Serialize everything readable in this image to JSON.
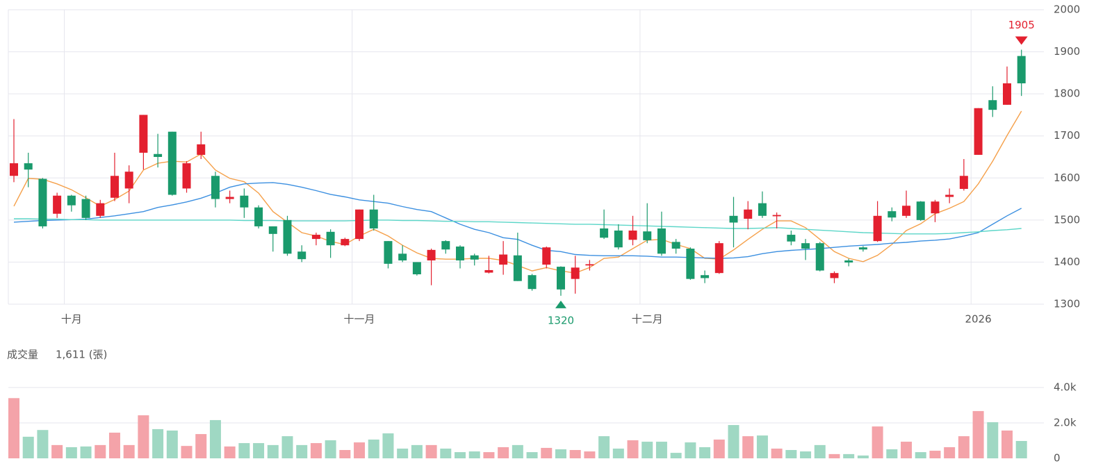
{
  "chart_data": [
    {
      "type": "candlestick",
      "categories": [
        null,
        null,
        null,
        null,
        "十月",
        null,
        null,
        null,
        null,
        null,
        null,
        null,
        null,
        null,
        null,
        null,
        null,
        null,
        null,
        null,
        null,
        null,
        null,
        null,
        "十一月",
        null,
        null,
        null,
        null,
        null,
        null,
        null,
        null,
        null,
        null,
        null,
        null,
        null,
        null,
        null,
        null,
        null,
        null,
        null,
        "十二月",
        null,
        null,
        null,
        null,
        null,
        null,
        null,
        null,
        null,
        null,
        null,
        null,
        null,
        null,
        null,
        null,
        null,
        null,
        null,
        null,
        null,
        null,
        "2026",
        null,
        null,
        null
      ],
      "open": [
        1605,
        1635,
        1598,
        1515,
        1558,
        1550,
        1510,
        1553,
        1575,
        1660,
        1657,
        1710,
        1575,
        1655,
        1605,
        1550,
        1558,
        1530,
        1485,
        1500,
        1425,
        1455,
        1472,
        1440,
        1455,
        1525,
        1450,
        1420,
        1400,
        1404,
        1450,
        1437,
        1416,
        1375,
        1394,
        1416,
        1369,
        1394,
        1389,
        1360,
        1392,
        1480,
        1475,
        1453,
        1473,
        1480,
        1448,
        1432,
        1369,
        1374,
        1510,
        1503,
        1540,
        1509,
        1465,
        1445,
        1445,
        1362,
        1404,
        1435,
        1450,
        1521,
        1510,
        1544,
        1516,
        1555,
        1574,
        1655,
        1785,
        1774,
        1890
      ],
      "high": [
        1740,
        1660,
        1600,
        1565,
        1560,
        1558,
        1548,
        1660,
        1630,
        1750,
        1705,
        1710,
        1640,
        1710,
        1615,
        1570,
        1575,
        1535,
        1485,
        1510,
        1440,
        1470,
        1478,
        1458,
        1525,
        1560,
        1450,
        1440,
        1400,
        1432,
        1452,
        1440,
        1420,
        1415,
        1450,
        1470,
        1372,
        1437,
        1390,
        1415,
        1405,
        1525,
        1490,
        1510,
        1540,
        1520,
        1455,
        1435,
        1380,
        1450,
        1555,
        1545,
        1568,
        1518,
        1475,
        1455,
        1448,
        1378,
        1408,
        1438,
        1545,
        1530,
        1570,
        1545,
        1548,
        1575,
        1645,
        1766,
        1818,
        1865,
        1905
      ],
      "low": [
        1590,
        1578,
        1480,
        1505,
        1520,
        1500,
        1505,
        1545,
        1540,
        1620,
        1625,
        1558,
        1565,
        1645,
        1530,
        1540,
        1505,
        1480,
        1425,
        1415,
        1400,
        1440,
        1410,
        1438,
        1450,
        1475,
        1385,
        1400,
        1368,
        1345,
        1420,
        1385,
        1392,
        1373,
        1370,
        1355,
        1332,
        1385,
        1320,
        1325,
        1380,
        1455,
        1430,
        1440,
        1445,
        1415,
        1420,
        1358,
        1350,
        1372,
        1435,
        1478,
        1505,
        1480,
        1440,
        1405,
        1378,
        1350,
        1390,
        1425,
        1448,
        1497,
        1505,
        1498,
        1495,
        1540,
        1570,
        1655,
        1745,
        1774,
        1795
      ],
      "close": [
        1635,
        1620,
        1485,
        1558,
        1535,
        1505,
        1540,
        1605,
        1615,
        1750,
        1650,
        1560,
        1635,
        1680,
        1550,
        1555,
        1530,
        1485,
        1467,
        1420,
        1407,
        1465,
        1440,
        1455,
        1525,
        1480,
        1396,
        1404,
        1371,
        1429,
        1430,
        1404,
        1406,
        1381,
        1418,
        1355,
        1336,
        1435,
        1335,
        1387,
        1395,
        1458,
        1435,
        1475,
        1452,
        1420,
        1432,
        1360,
        1362,
        1445,
        1494,
        1525,
        1510,
        1512,
        1449,
        1432,
        1380,
        1374,
        1399,
        1430,
        1510,
        1506,
        1534,
        1500,
        1544,
        1560,
        1605,
        1766,
        1762,
        1825,
        1825
      ],
      "up_color": "#e3202f",
      "down_color": "#1a9a6c",
      "series": [
        {
          "name": null,
          "color": "#f5a04a",
          "values": [
            1533,
            1599,
            1597,
            1586,
            1572,
            1553,
            1533,
            1549,
            1569,
            1619,
            1635,
            1640,
            1638,
            1657,
            1619,
            1599,
            1591,
            1564,
            1520,
            1495,
            1470,
            1462,
            1449,
            1442,
            1462,
            1478,
            1462,
            1440,
            1422,
            1409,
            1407,
            1407,
            1409,
            1409,
            1404,
            1392,
            1379,
            1387,
            1379,
            1374,
            1387,
            1409,
            1412,
            1432,
            1452,
            1454,
            1442,
            1432,
            1409,
            1407,
            1429,
            1454,
            1478,
            1498,
            1498,
            1482,
            1454,
            1425,
            1409,
            1401,
            1416,
            1442,
            1475,
            1491,
            1515,
            1528,
            1544,
            1586,
            1640,
            1701,
            1759
          ]
        },
        {
          "name": null,
          "color": "#3b8fe0",
          "values": [
            1495,
            1497,
            1499,
            1500,
            1501,
            1502,
            1506,
            1510,
            1515,
            1520,
            1530,
            1536,
            1543,
            1552,
            1564,
            1578,
            1586,
            1588,
            1589,
            1585,
            1578,
            1570,
            1561,
            1555,
            1548,
            1544,
            1540,
            1532,
            1525,
            1520,
            1505,
            1490,
            1478,
            1470,
            1458,
            1454,
            1440,
            1428,
            1425,
            1418,
            1416,
            1415,
            1415,
            1415,
            1414,
            1412,
            1412,
            1411,
            1410,
            1409,
            1410,
            1413,
            1420,
            1425,
            1428,
            1430,
            1432,
            1435,
            1438,
            1440,
            1442,
            1445,
            1447,
            1450,
            1452,
            1455,
            1462,
            1470,
            1490,
            1510,
            1528
          ]
        },
        {
          "name": null,
          "color": "#5cd6c8",
          "values": [
            1503,
            1503,
            1502,
            1502,
            1501,
            1501,
            1500,
            1500,
            1500,
            1500,
            1500,
            1500,
            1500,
            1500,
            1500,
            1500,
            1499,
            1499,
            1499,
            1498,
            1498,
            1498,
            1498,
            1498,
            1499,
            1500,
            1500,
            1499,
            1499,
            1498,
            1497,
            1497,
            1496,
            1496,
            1495,
            1494,
            1493,
            1492,
            1491,
            1490,
            1490,
            1489,
            1488,
            1487,
            1486,
            1485,
            1484,
            1483,
            1482,
            1481,
            1480,
            1480,
            1481,
            1482,
            1480,
            1478,
            1476,
            1474,
            1472,
            1470,
            1469,
            1468,
            1467,
            1467,
            1467,
            1468,
            1470,
            1472,
            1475,
            1477,
            1480
          ]
        }
      ],
      "annotations": [
        {
          "value": 1905,
          "kind": "high",
          "color": "#e3202f"
        },
        {
          "value": 1320,
          "kind": "low",
          "color": "#1a9a6c"
        }
      ],
      "ylim": [
        1300,
        2000
      ],
      "yticks": [
        1300,
        1400,
        1500,
        1600,
        1700,
        1800,
        1900,
        2000
      ],
      "grid": true
    },
    {
      "type": "bar",
      "title": "成交量",
      "subtitle": "1,611 (張)",
      "values": [
        3400,
        1220,
        1600,
        750,
        630,
        670,
        750,
        1450,
        750,
        2430,
        1650,
        1570,
        700,
        1370,
        2160,
        670,
        860,
        860,
        750,
        1250,
        750,
        860,
        1020,
        470,
        900,
        1060,
        1410,
        550,
        750,
        750,
        550,
        350,
        390,
        350,
        630,
        750,
        350,
        590,
        510,
        470,
        390,
        1250,
        550,
        1020,
        940,
        940,
        310,
        900,
        630,
        1060,
        1880,
        1250,
        1290,
        550,
        470,
        390,
        750,
        240,
        240,
        160,
        1800,
        510,
        940,
        350,
        430,
        630,
        1250,
        2670,
        2040,
        1570,
        980
      ],
      "up_color": "#f4a3a9",
      "down_color": "#9fd8c3",
      "ylim": [
        0,
        4000
      ],
      "yticks": [
        0,
        {
          "value": 2000,
          "label": "2.0k"
        },
        {
          "value": 4000,
          "label": "4.0k"
        }
      ],
      "grid": true
    }
  ]
}
